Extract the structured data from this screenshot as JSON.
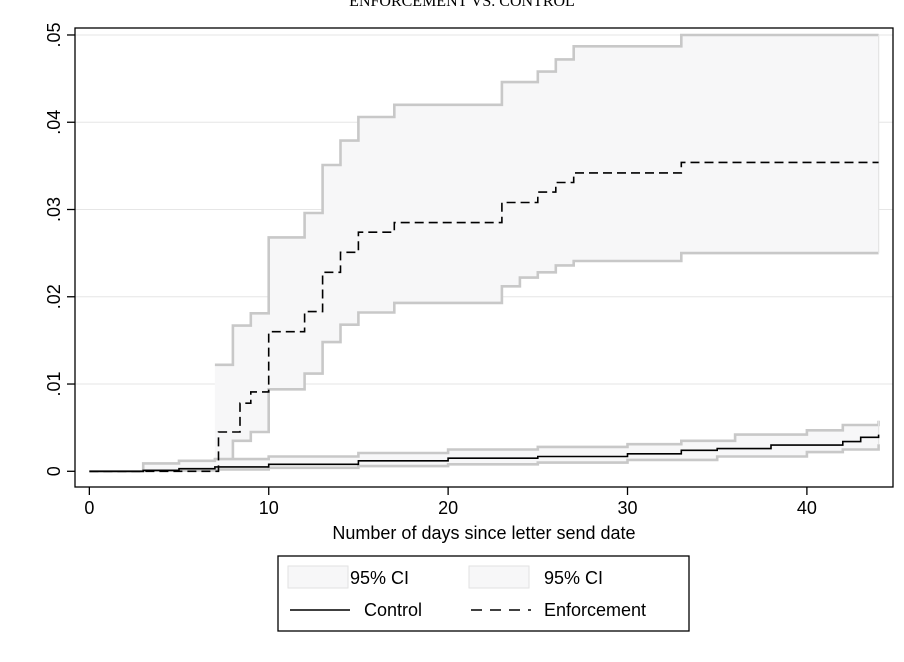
{
  "chart_data": {
    "type": "line",
    "title": "ENFORCEMENT VS. CONTROL",
    "xlabel": "Number of days since letter send date",
    "ylabel": "",
    "xlim": [
      -0.8,
      44.8
    ],
    "ylim": [
      -0.0018,
      0.0508
    ],
    "xticks": [
      0,
      10,
      20,
      30,
      40
    ],
    "xtick_labels": [
      "0",
      "10",
      "20",
      "30",
      "40"
    ],
    "yticks": [
      0,
      0.01,
      0.02,
      0.03,
      0.04,
      0.05
    ],
    "ytick_labels": [
      "0",
      ".01",
      ".02",
      ".03",
      ".04",
      ".05"
    ],
    "grid": true,
    "legend_position": "bottom",
    "colors": {
      "estimate": "#000000",
      "ci_line": "#c8c8c8",
      "ci_fill": "#f7f7f8",
      "grid": "#e6e6e6"
    },
    "series": [
      {
        "name": "Enforcement",
        "role": "estimate",
        "style": "dashed",
        "x": [
          0,
          7,
          7.2,
          8,
          8.4,
          9,
          10,
          12,
          13,
          14,
          14.5,
          15,
          17,
          23,
          25,
          25.5,
          26,
          27,
          33,
          44
        ],
        "y": [
          0,
          0,
          0.0045,
          0.0045,
          0.0078,
          0.0091,
          0.016,
          0.0183,
          0.0228,
          0.0251,
          0.0251,
          0.0274,
          0.0285,
          0.0308,
          0.032,
          0.032,
          0.0331,
          0.0342,
          0.0354,
          0.0354
        ]
      },
      {
        "name": "95% CI",
        "role": "ci",
        "lower": {
          "x": [
            7,
            8,
            9,
            10,
            12,
            13,
            14,
            15,
            17,
            23,
            24,
            25,
            26,
            27,
            33,
            44
          ],
          "y": [
            0.0012,
            0.0035,
            0.0045,
            0.0094,
            0.0112,
            0.0148,
            0.0168,
            0.0182,
            0.0193,
            0.0212,
            0.0222,
            0.0228,
            0.0236,
            0.0241,
            0.025,
            0.025
          ]
        },
        "upper": {
          "x": [
            7,
            8,
            9,
            10,
            12,
            13,
            14,
            15,
            17,
            23,
            25,
            26,
            27,
            33,
            44
          ],
          "y": [
            0.0122,
            0.0167,
            0.0181,
            0.0268,
            0.0296,
            0.0351,
            0.0379,
            0.0406,
            0.042,
            0.0446,
            0.0458,
            0.0472,
            0.0487,
            0.05,
            0.05
          ]
        }
      },
      {
        "name": "Control",
        "role": "estimate",
        "style": "solid",
        "x": [
          0,
          3,
          5,
          7,
          10,
          15,
          20,
          25,
          30,
          33,
          35,
          38,
          42,
          43,
          44
        ],
        "y": [
          0,
          0.0001,
          0.0003,
          0.0005,
          0.0008,
          0.0012,
          0.0015,
          0.0017,
          0.002,
          0.0024,
          0.0026,
          0.003,
          0.0034,
          0.0039,
          0.0042
        ]
      },
      {
        "name": "95% CI",
        "role": "ci",
        "lower": {
          "x": [
            0,
            3,
            7,
            10,
            15,
            20,
            25,
            30,
            35,
            40,
            42,
            44
          ],
          "y": [
            0,
            0.0001,
            0.0002,
            0.0004,
            0.0006,
            0.0008,
            0.001,
            0.0013,
            0.0017,
            0.0022,
            0.0025,
            0.0031
          ]
        },
        "upper": {
          "x": [
            0,
            3,
            5,
            7,
            10,
            15,
            20,
            25,
            30,
            33,
            36,
            40,
            42,
            44
          ],
          "y": [
            0,
            0.0009,
            0.0012,
            0.0014,
            0.0017,
            0.0021,
            0.0025,
            0.0028,
            0.0031,
            0.0035,
            0.0042,
            0.0047,
            0.0053,
            0.0058
          ]
        }
      }
    ],
    "legend": [
      {
        "label": "95% CI",
        "kind": "box"
      },
      {
        "label": "95% CI",
        "kind": "box"
      },
      {
        "label": "Control",
        "kind": "solid"
      },
      {
        "label": "Enforcement",
        "kind": "dashed"
      }
    ]
  }
}
